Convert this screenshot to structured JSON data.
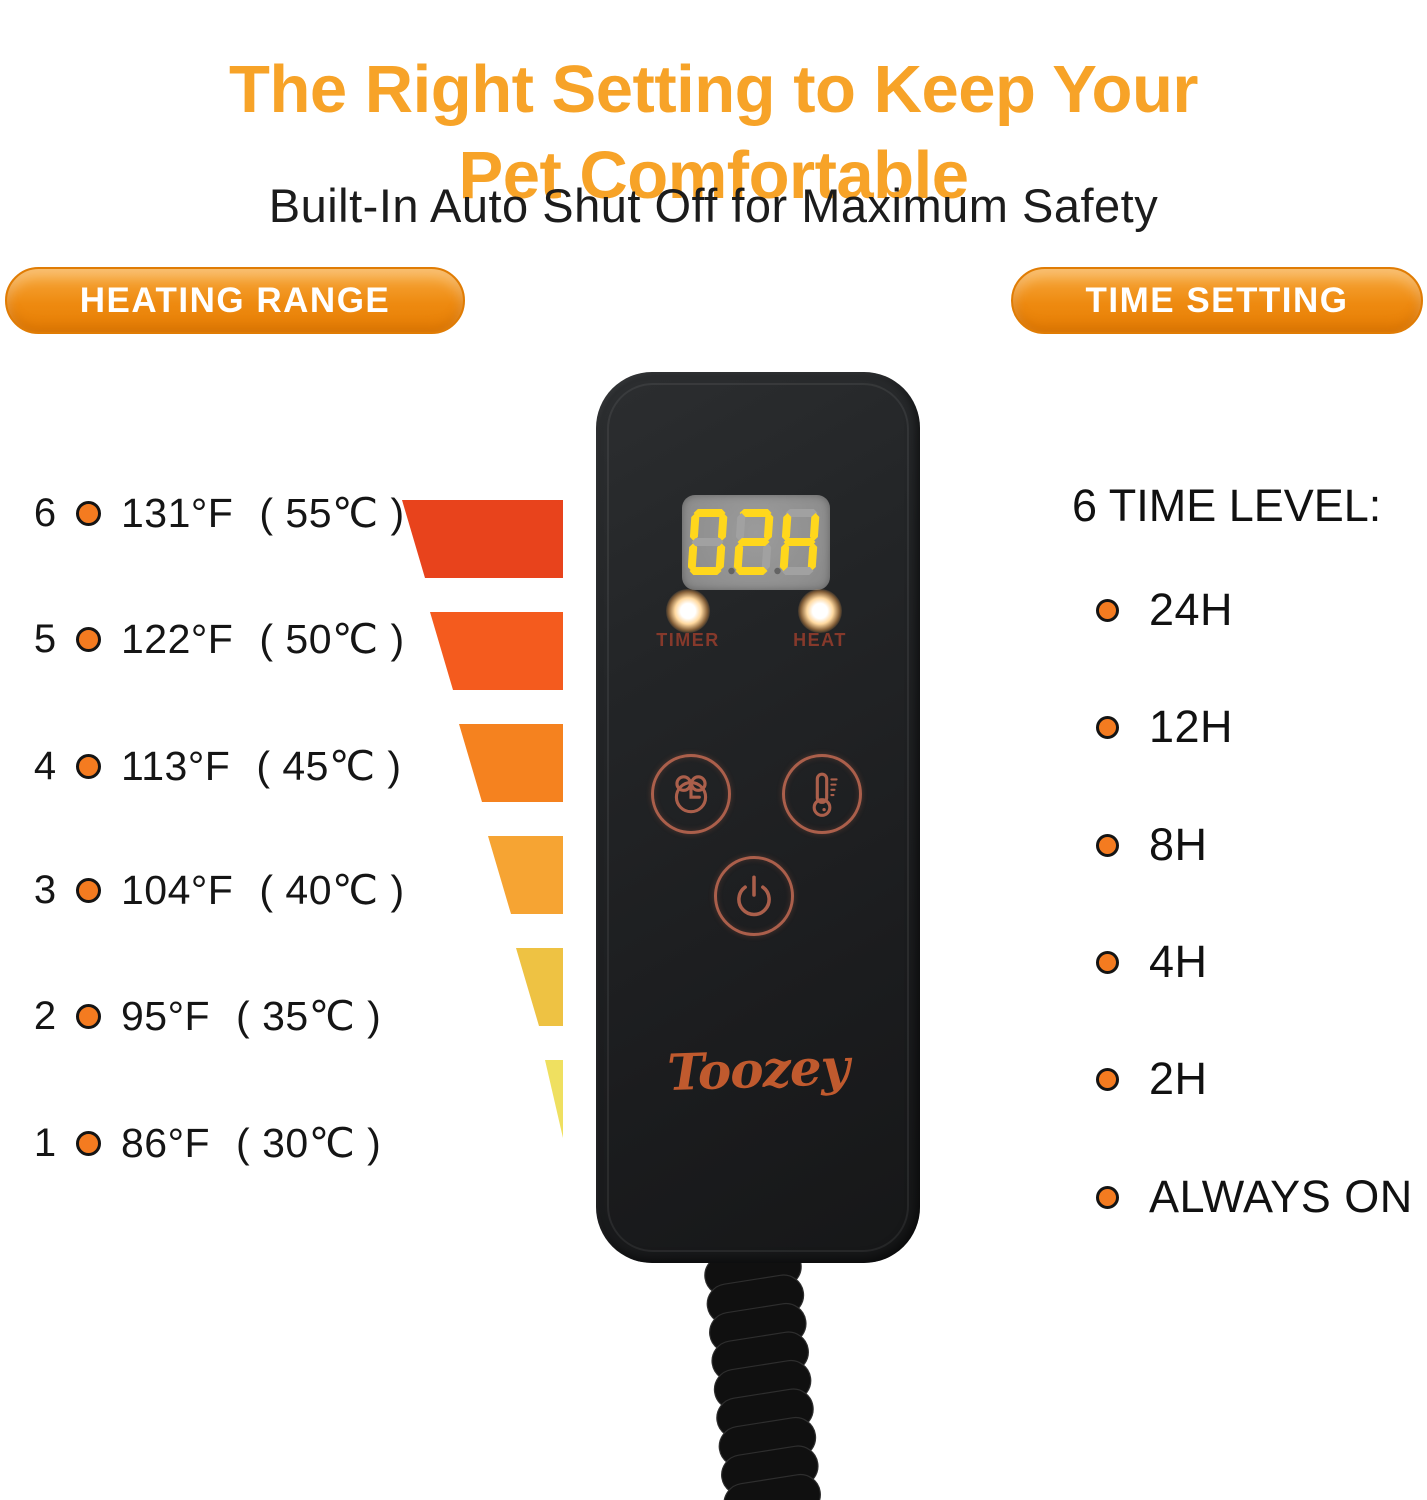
{
  "title": {
    "line1": "The Right Setting to Keep Your",
    "line2": "Pet Comfortable"
  },
  "subtitle": "Built-In Auto Shut Off for Maximum Safety",
  "badges": {
    "left": "HEATING RANGE",
    "right": "TIME SETTING"
  },
  "heating": {
    "levels": [
      {
        "level": "6",
        "fahrenheit": "131°F",
        "celsius": "( 55℃ )",
        "bar_color": "#e8431c"
      },
      {
        "level": "5",
        "fahrenheit": "122°F",
        "celsius": "( 50℃ )",
        "bar_color": "#f45b1e"
      },
      {
        "level": "4",
        "fahrenheit": "113°F",
        "celsius": "( 45℃ )",
        "bar_color": "#f5821f"
      },
      {
        "level": "3",
        "fahrenheit": "104°F",
        "celsius": "( 40℃ )",
        "bar_color": "#f6a433"
      },
      {
        "level": "2",
        "fahrenheit": "95°F",
        "celsius": "( 35℃ )",
        "bar_color": "#eec243"
      },
      {
        "level": "1",
        "fahrenheit": "86°F",
        "celsius": "( 30℃ )",
        "bar_color": "#efe060"
      }
    ]
  },
  "controller": {
    "display_value": "02H",
    "indicator_timer": "TIMER",
    "indicator_heat": "HEAT",
    "brand": "Toozey",
    "buttons": [
      {
        "name": "timer-button",
        "icon": "alarm-clock"
      },
      {
        "name": "heat-button",
        "icon": "thermometer"
      },
      {
        "name": "power-button",
        "icon": "power"
      }
    ]
  },
  "time_setting": {
    "heading": "6 TIME LEVEL:",
    "levels": [
      "24H",
      "12H",
      "8H",
      "4H",
      "2H",
      "ALWAYS ON"
    ]
  },
  "colors": {
    "accent": "#f7a328",
    "badge_hi": "#f8ab41",
    "badge_mid": "#ee8a10",
    "badge_lo": "#e67e04",
    "bullet": "#f47b20",
    "button_line": "#ab5f4b",
    "led_label": "#86392b",
    "logo": "#c05a2e",
    "seg_lit": "#ffd71c",
    "seg_unlit": "#a1a1a1"
  }
}
